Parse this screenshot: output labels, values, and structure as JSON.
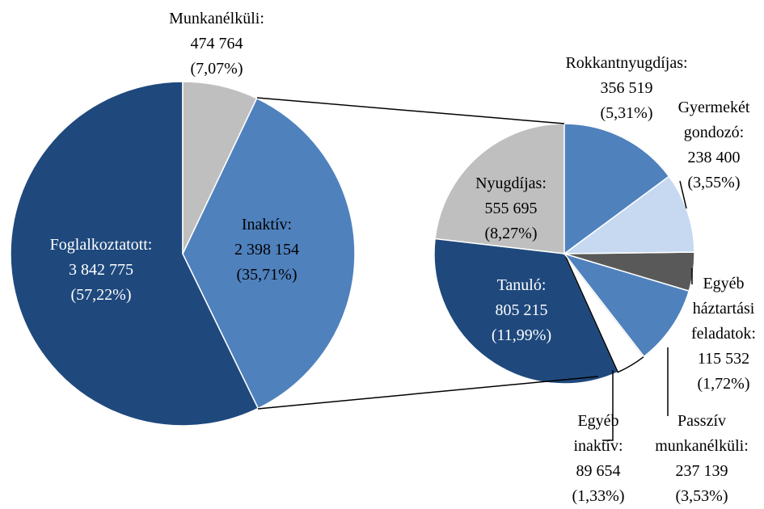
{
  "chart_data": [
    {
      "type": "pie",
      "categories": [
        "Munkanélküli:",
        "Inaktív:",
        "Foglalkoztatott:"
      ],
      "values": [
        474764,
        2398154,
        3842775
      ],
      "value_labels": [
        "474 764",
        "2 398 154",
        "3 842 775"
      ],
      "shares": [
        7.07,
        35.71,
        57.22
      ],
      "share_labels": [
        "(7,07%)",
        "(35,71%)",
        "(57,22%)"
      ],
      "colors": [
        "#bfbfbf",
        "#4f81bd",
        "#1f497d"
      ],
      "label_colors": [
        "#000000",
        "#000000",
        "#ffffff"
      ]
    },
    {
      "type": "pie",
      "categories": [
        "Rokkantnyugdíjas:",
        "Gyermekét gondozó:",
        "Egyéb háztartási feladatok:",
        "Passzív munkanélküli:",
        "Egyéb inaktív:",
        "Tanuló:",
        "Nyugdíjas:"
      ],
      "values": [
        356519,
        238400,
        115532,
        237139,
        89654,
        805215,
        555695
      ],
      "value_labels": [
        "356 519",
        "238 400",
        "115 532",
        "237 139",
        "89 654",
        "805 215",
        "555 695"
      ],
      "shares": [
        5.31,
        3.55,
        1.72,
        3.53,
        1.33,
        11.99,
        8.27
      ],
      "share_labels": [
        "(5,31%)",
        "(3,55%)",
        "(1,72%)",
        "(3,53%)",
        "(1,33%)",
        "(11,99%)",
        "(8,27%)"
      ],
      "colors": [
        "#4f81bd",
        "#c6d9f1",
        "#595959",
        "#4f81bd",
        "#ffffff",
        "#1f497d",
        "#bfbfbf"
      ],
      "label_colors": [
        "#000000",
        "#000000",
        "#000000",
        "#000000",
        "#000000",
        "#ffffff",
        "#000000"
      ]
    }
  ]
}
